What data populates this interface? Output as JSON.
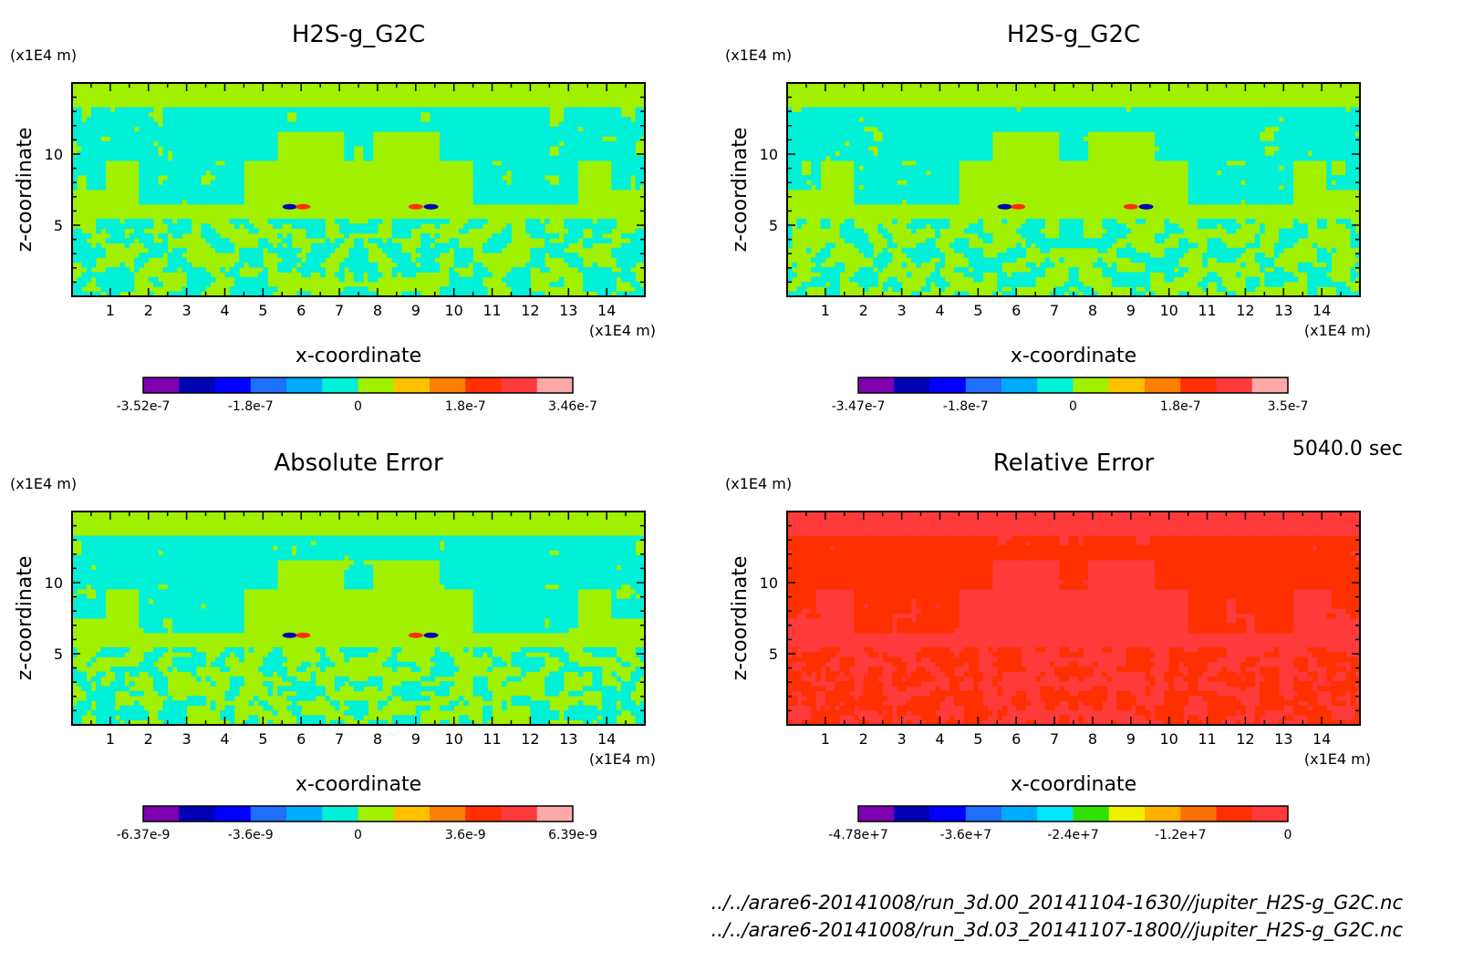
{
  "time_label": "5040.0 sec",
  "footer": {
    "file1": "../../arare6-20141008/run_3d.00_20141104-1630//jupiter_H2S-g_G2C.nc",
    "file2": "../../arare6-20141008/run_3d.03_20141107-1800//jupiter_H2S-g_G2C.nc"
  },
  "palette": {
    "default": [
      "#7f00b0",
      "#0000b4",
      "#0000ff",
      "#1f6fff",
      "#00aaff",
      "#00f0d8",
      "#a0f000",
      "#ffc000",
      "#ff8000",
      "#ff3000",
      "#ff3a3a",
      "#ffa8a8"
    ],
    "relative": [
      "#7f00b0",
      "#0000b4",
      "#0000ff",
      "#1f6fff",
      "#00aaff",
      "#00e8ff",
      "#30e000",
      "#f0f000",
      "#ffb000",
      "#ff7000",
      "#ff3000",
      "#ff3a3a"
    ]
  },
  "chart_data": [
    {
      "type": "heatmap",
      "title": "H2S-g_G2C",
      "xlabel": "x-coordinate",
      "ylabel": "z-coordinate",
      "x_unit": "(x1E4 m)",
      "y_unit": "(x1E4 m)",
      "xlim": [
        0,
        15
      ],
      "ylim": [
        0,
        15
      ],
      "xticks": [
        1,
        2,
        3,
        4,
        5,
        6,
        7,
        8,
        9,
        10,
        11,
        12,
        13,
        14
      ],
      "yticks": [
        5,
        10
      ],
      "colorbar_labels": [
        "-3.52e-7",
        "-1.8e-7",
        "0",
        "1.8e-7",
        "3.46e-7"
      ],
      "palette": "default",
      "background_level": 6,
      "pattern_level": 5
    },
    {
      "type": "heatmap",
      "title": "H2S-g_G2C",
      "xlabel": "x-coordinate",
      "ylabel": "z-coordinate",
      "x_unit": "(x1E4 m)",
      "y_unit": "(x1E4 m)",
      "xlim": [
        0,
        15
      ],
      "ylim": [
        0,
        15
      ],
      "xticks": [
        1,
        2,
        3,
        4,
        5,
        6,
        7,
        8,
        9,
        10,
        11,
        12,
        13,
        14
      ],
      "yticks": [
        5,
        10
      ],
      "colorbar_labels": [
        "-3.47e-7",
        "-1.8e-7",
        "0",
        "1.8e-7",
        "3.5e-7"
      ],
      "palette": "default",
      "background_level": 6,
      "pattern_level": 5
    },
    {
      "type": "heatmap",
      "title": "Absolute Error",
      "xlabel": "x-coordinate",
      "ylabel": "z-coordinate",
      "x_unit": "(x1E4 m)",
      "y_unit": "(x1E4 m)",
      "xlim": [
        0,
        15
      ],
      "ylim": [
        0,
        15
      ],
      "xticks": [
        1,
        2,
        3,
        4,
        5,
        6,
        7,
        8,
        9,
        10,
        11,
        12,
        13,
        14
      ],
      "yticks": [
        5,
        10
      ],
      "colorbar_labels": [
        "-6.37e-9",
        "-3.6e-9",
        "0",
        "3.6e-9",
        "6.39e-9"
      ],
      "palette": "default",
      "background_level": 6,
      "pattern_level": 5
    },
    {
      "type": "heatmap",
      "title": "Relative Error",
      "xlabel": "x-coordinate",
      "ylabel": "z-coordinate",
      "x_unit": "(x1E4 m)",
      "y_unit": "(x1E4 m)",
      "xlim": [
        0,
        15
      ],
      "ylim": [
        0,
        15
      ],
      "xticks": [
        1,
        2,
        3,
        4,
        5,
        6,
        7,
        8,
        9,
        10,
        11,
        12,
        13,
        14
      ],
      "yticks": [
        5,
        10
      ],
      "colorbar_labels": [
        "-4.78e+7",
        "-3.6e+7",
        "-2.4e+7",
        "-1.2e+7",
        "0"
      ],
      "palette": "relative",
      "background_level": 11,
      "pattern_level": 10
    }
  ]
}
